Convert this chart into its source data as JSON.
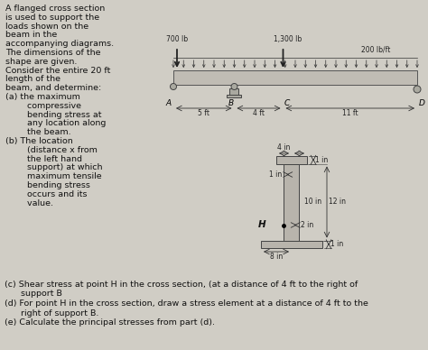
{
  "bg_color": "#d0cdc5",
  "text_color": "#111111",
  "title_text": [
    "A flanged cross section",
    "is used to support the",
    "loads shown on the",
    "beam in the",
    "accompanying diagrams.",
    "The dimensions of the",
    "shape are given.",
    "Consider the entire 20 ft",
    "length of the",
    "beam, and determine:"
  ],
  "sub_items_a": [
    "(a) the maximum",
    "        compressive",
    "        bending stress at",
    "        any location along",
    "        the beam."
  ],
  "sub_items_b": [
    "(b) The location",
    "        (distance x from",
    "        the left hand",
    "        support) at which",
    "        maximum tensile",
    "        bending stress",
    "        occurs and its",
    "        value."
  ],
  "beam_label_700": "700 lb",
  "beam_label_1300": "1,300 lb",
  "beam_label_200": "200 lb/ft",
  "bottom_text": [
    "(c) Shear stress at point H in the cross section, (at a distance of 4 ft to the right of",
    "      support B",
    "(d) For point H in the cross section, draw a stress element at a distance of 4 ft to the",
    "      right of support B.",
    "(e) Calculate the principal stresses from part (d)."
  ]
}
